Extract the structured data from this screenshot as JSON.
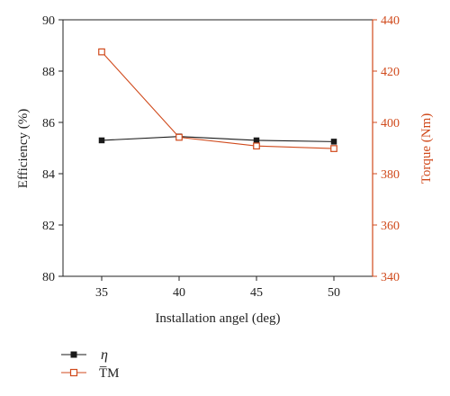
{
  "chart_data": {
    "type": "line",
    "x": [
      35,
      40,
      45,
      50
    ],
    "xlabel": "Installation angel (deg)",
    "xlim": [
      32.5,
      52.5
    ],
    "xticks": [
      35,
      40,
      45,
      50
    ],
    "y_left": {
      "label": "Efficiency (%)",
      "lim": [
        80,
        90
      ],
      "ticks": [
        80,
        82,
        84,
        86,
        88,
        90
      ],
      "color": "#222222"
    },
    "y_right": {
      "label": "Torque (Nm)",
      "lim": [
        340,
        440
      ],
      "ticks": [
        340,
        360,
        380,
        400,
        420,
        440
      ],
      "color": "#d04a1c"
    },
    "series": [
      {
        "name": "η",
        "axis": "left",
        "marker": "filled-square",
        "color": "#1a1a1a",
        "values": [
          85.3,
          85.45,
          85.3,
          85.25
        ]
      },
      {
        "name": "T̅M",
        "axis": "right",
        "marker": "open-square",
        "color": "#d04a1c",
        "values": [
          427.5,
          394.2,
          390.8,
          389.8
        ]
      }
    ],
    "legend_position": "bottom-left",
    "grid": false
  }
}
